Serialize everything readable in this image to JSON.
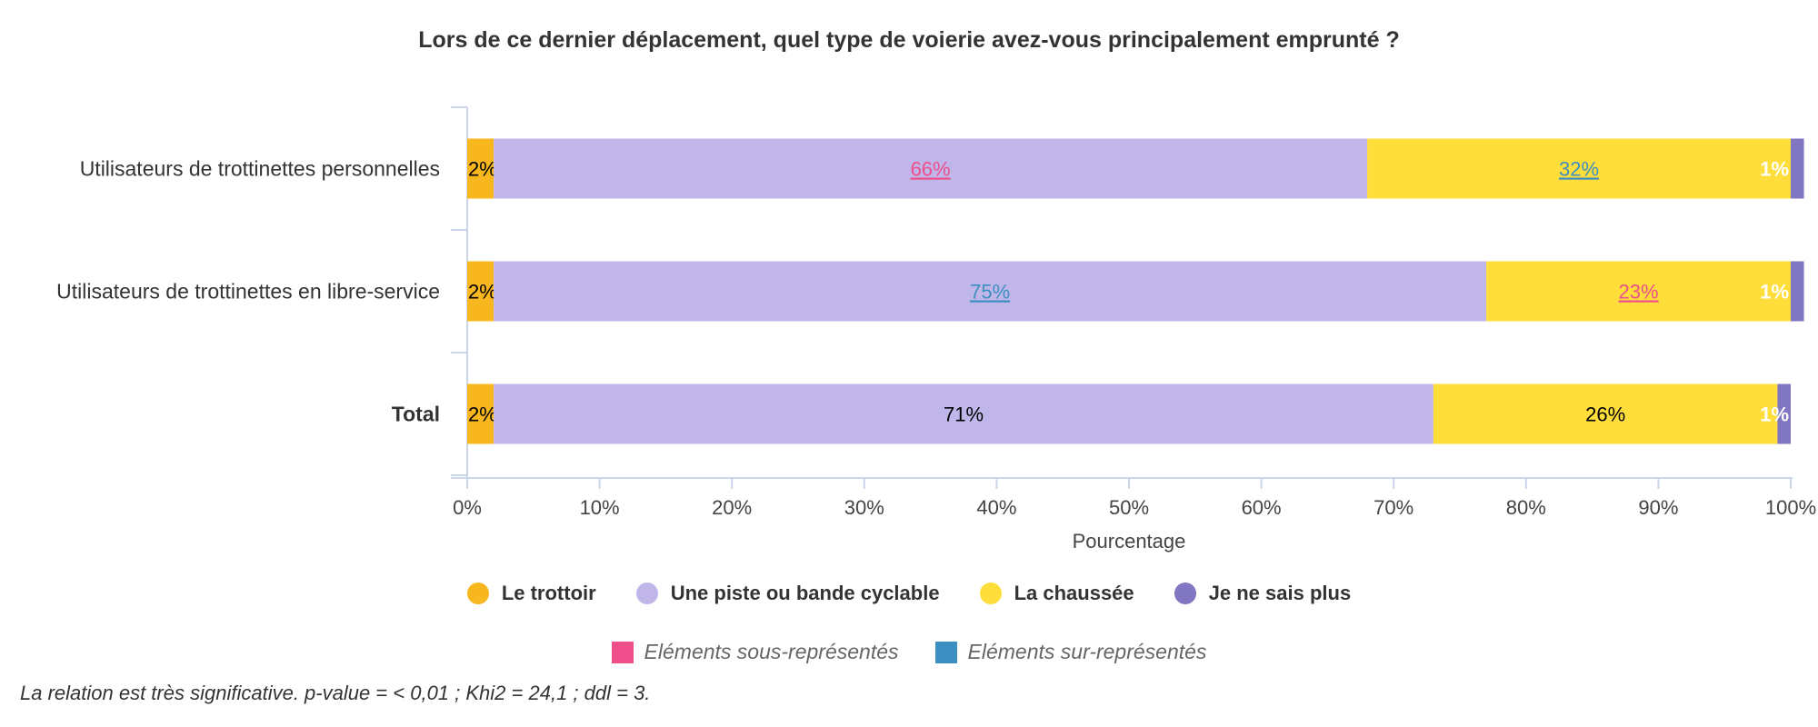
{
  "title": "Lors de ce dernier déplacement, quel type de voierie avez-vous principalement emprunté ?",
  "chart_data": {
    "type": "bar",
    "orientation": "horizontal",
    "stacked": true,
    "categories": [
      "Utilisateurs de trottinettes personnelles",
      "Utilisateurs de trottinettes en libre-service",
      "Total"
    ],
    "category_bold": [
      false,
      false,
      true
    ],
    "series": [
      {
        "name": "Le trottoir",
        "color": "#f8b61f",
        "values": [
          2,
          2,
          2
        ],
        "labels": [
          "2%",
          "2%",
          "2%"
        ],
        "label_color": [
          "#000000",
          "#000000",
          "#000000"
        ],
        "significance": [
          "none",
          "none",
          "none"
        ]
      },
      {
        "name": "Une piste ou bande cyclable",
        "color": "#c1b6ea",
        "values": [
          66,
          75,
          71
        ],
        "labels": [
          "66%",
          "75%",
          "71%"
        ],
        "label_color": [
          "#ee4f8b",
          "#3d8fc1",
          "#000000"
        ],
        "significance": [
          "under",
          "over",
          "none"
        ]
      },
      {
        "name": "La chaussée",
        "color": "#ffde3b",
        "values": [
          32,
          23,
          26
        ],
        "labels": [
          "32%",
          "23%",
          "26%"
        ],
        "label_color": [
          "#3d8fc1",
          "#ee4f8b",
          "#000000"
        ],
        "significance": [
          "over",
          "under",
          "none"
        ]
      },
      {
        "name": "Je ne sais plus",
        "color": "#8076c1",
        "values": [
          1,
          1,
          1
        ],
        "labels": [
          "1%",
          "1%",
          "1%"
        ],
        "label_color": [
          "#ffffff",
          "#ffffff",
          "#ffffff"
        ],
        "significance": [
          "none",
          "none",
          "none"
        ]
      }
    ],
    "xlabel": "Pourcentage",
    "ylabel": "",
    "xlim": [
      0,
      100
    ],
    "xticks": [
      "0%",
      "10%",
      "20%",
      "30%",
      "40%",
      "50%",
      "60%",
      "70%",
      "80%",
      "90%",
      "100%"
    ],
    "grid": false,
    "legend_position": "bottom"
  },
  "significance_legend": [
    {
      "label": "Eléments sous-représentés",
      "color": "#ee4f8b"
    },
    {
      "label": "Eléments sur-représentés",
      "color": "#3d8fc1"
    }
  ],
  "footnote": "La relation est très significative. p-value = < 0,01 ; Khi2 = 24,1 ; ddl = 3."
}
